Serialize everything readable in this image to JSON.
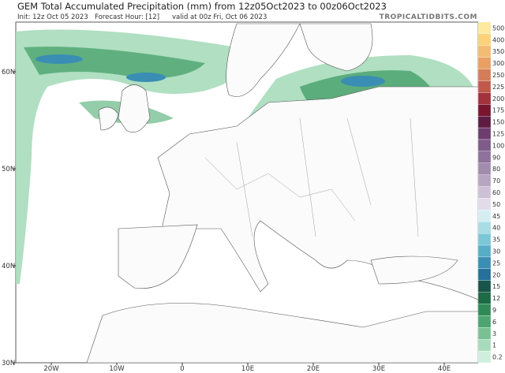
{
  "header": {
    "title": "GEM Total Accumulated Precipitation (mm) from 12z05Oct2023 to 00z06Oct2023",
    "init": "Init: 12z Oct 05 2023",
    "forecast_hour": "Forecast Hour: [12]",
    "valid": "valid at 00z Fri, Oct 06 2023",
    "source": "TROPICALTIDBITS.COM"
  },
  "colorbar": {
    "levels": [
      500,
      400,
      350,
      300,
      250,
      225,
      200,
      175,
      150,
      125,
      100,
      90,
      80,
      70,
      60,
      50,
      45,
      40,
      35,
      30,
      25,
      20,
      15,
      12,
      9,
      6,
      3,
      1,
      0.2
    ],
    "colors": [
      "#fde9a0",
      "#fbd27a",
      "#f4bc72",
      "#e9a062",
      "#d57c58",
      "#c0594a",
      "#a2323c",
      "#7a1530",
      "#5e1c42",
      "#6d3d6d",
      "#7e5b88",
      "#8f729b",
      "#a28cad",
      "#b6a6c1",
      "#ccc1d5",
      "#e2dce8",
      "#d6eef3",
      "#a8dde6",
      "#7cc7d6",
      "#56adc6",
      "#3a8eb4",
      "#26709a",
      "#17544a",
      "#1d6a47",
      "#2f8a58",
      "#4ca46e",
      "#78c193",
      "#a7dbbb",
      "#cfefdc"
    ]
  },
  "lat_labels": [
    {
      "value": 60,
      "label": "60N"
    },
    {
      "value": 50,
      "label": "50N"
    },
    {
      "value": 40,
      "label": "40N"
    },
    {
      "value": 30,
      "label": "30N"
    }
  ],
  "lon_labels": [
    {
      "value": -20,
      "label": "20W"
    },
    {
      "value": -10,
      "label": "10W"
    },
    0,
    {
      "value": 10,
      "label": "10E"
    },
    {
      "value": 20,
      "label": "20E"
    },
    {
      "value": 30,
      "label": "30E"
    },
    {
      "value": 40,
      "label": "40E"
    }
  ]
}
